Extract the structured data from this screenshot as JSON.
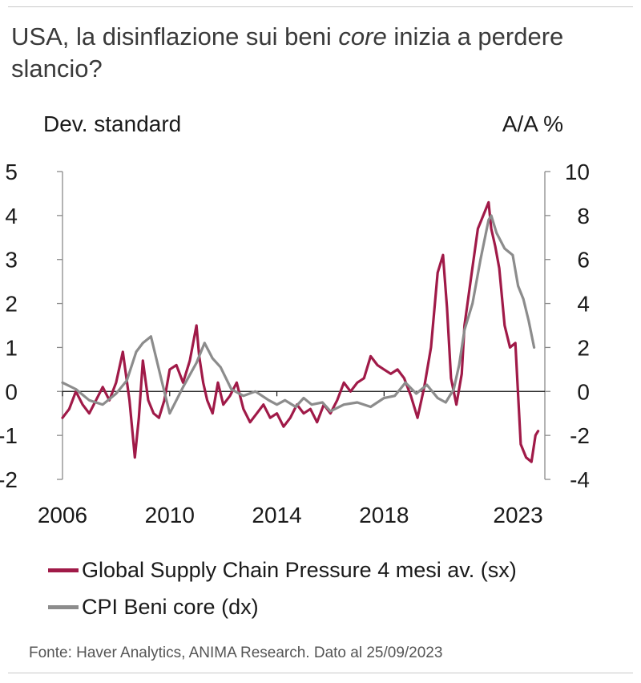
{
  "title": {
    "part1": "USA, la disinflazione sui beni ",
    "emph": "core",
    "part2": " inizia a perdere slancio?"
  },
  "colors": {
    "gscpi": "#a01a48",
    "cpi": "#8c8c8c",
    "axis": "#8a8a8a"
  },
  "chart_data": {
    "type": "line",
    "left_axis_label": "Dev. standard",
    "right_axis_label": "A/A %",
    "left_ylim": [
      -2,
      5
    ],
    "right_ylim": [
      -4,
      10
    ],
    "left_ticks": [
      "5",
      "4",
      "3",
      "2",
      "1",
      "0",
      "-1",
      "-2"
    ],
    "right_ticks": [
      "10",
      "8",
      "6",
      "4",
      "2",
      "0",
      "-2",
      "-4"
    ],
    "xlim": [
      2006,
      2024
    ],
    "x_ticks": [
      "2006",
      "2010",
      "2014",
      "2018",
      "2023"
    ],
    "series": [
      {
        "name": "Global Supply Chain Pressure 4 mesi av. (sx)",
        "axis": "left",
        "x": [
          2006.0,
          2006.25,
          2006.5,
          2006.75,
          2007.0,
          2007.25,
          2007.5,
          2007.75,
          2008.0,
          2008.25,
          2008.5,
          2008.7,
          2008.85,
          2009.0,
          2009.2,
          2009.4,
          2009.6,
          2009.8,
          2010.0,
          2010.25,
          2010.5,
          2010.75,
          2011.0,
          2011.1,
          2011.25,
          2011.4,
          2011.6,
          2011.8,
          2012.0,
          2012.25,
          2012.5,
          2012.75,
          2013.0,
          2013.25,
          2013.5,
          2013.75,
          2014.0,
          2014.25,
          2014.5,
          2014.75,
          2015.0,
          2015.25,
          2015.5,
          2015.75,
          2016.0,
          2016.25,
          2016.5,
          2016.75,
          2017.0,
          2017.25,
          2017.5,
          2017.75,
          2018.0,
          2018.25,
          2018.5,
          2018.75,
          2019.0,
          2019.25,
          2019.5,
          2019.75,
          2020.0,
          2020.2,
          2020.35,
          2020.5,
          2020.7,
          2020.9,
          2021.0,
          2021.25,
          2021.5,
          2021.7,
          2021.9,
          2022.0,
          2022.15,
          2022.3,
          2022.5,
          2022.7,
          2022.9,
          2023.1,
          2023.3,
          2023.5,
          2023.65,
          2023.75
        ],
        "values": [
          -0.6,
          -0.4,
          0.0,
          -0.3,
          -0.5,
          -0.2,
          0.1,
          -0.2,
          0.2,
          0.9,
          -0.2,
          -1.5,
          -0.6,
          0.7,
          -0.2,
          -0.5,
          -0.6,
          -0.2,
          0.5,
          0.6,
          0.2,
          0.7,
          1.5,
          0.8,
          0.2,
          -0.2,
          -0.5,
          0.2,
          -0.3,
          -0.1,
          0.2,
          -0.4,
          -0.7,
          -0.5,
          -0.3,
          -0.6,
          -0.5,
          -0.8,
          -0.6,
          -0.3,
          -0.5,
          -0.4,
          -0.7,
          -0.3,
          -0.5,
          -0.2,
          0.2,
          0.0,
          0.2,
          0.3,
          0.8,
          0.6,
          0.5,
          0.4,
          0.5,
          0.3,
          -0.1,
          -0.6,
          0.1,
          1.0,
          2.7,
          3.1,
          1.9,
          0.3,
          -0.3,
          0.4,
          1.5,
          2.6,
          3.7,
          4.0,
          4.3,
          3.7,
          3.3,
          2.8,
          1.5,
          1.0,
          1.1,
          -1.2,
          -1.5,
          -1.6,
          -1.0,
          -0.9
        ]
      },
      {
        "name": "CPI Beni core (dx)",
        "axis": "right",
        "x": [
          2006.0,
          2006.5,
          2007.0,
          2007.5,
          2008.0,
          2008.4,
          2008.75,
          2009.0,
          2009.3,
          2009.7,
          2010.0,
          2010.5,
          2011.0,
          2011.3,
          2011.6,
          2011.9,
          2012.3,
          2012.75,
          2013.2,
          2013.7,
          2014.0,
          2014.3,
          2014.7,
          2015.0,
          2015.3,
          2015.7,
          2016.0,
          2016.5,
          2017.0,
          2017.5,
          2018.0,
          2018.4,
          2018.8,
          2019.2,
          2019.6,
          2020.0,
          2020.3,
          2020.6,
          2020.8,
          2021.0,
          2021.3,
          2021.6,
          2021.9,
          2022.0,
          2022.2,
          2022.5,
          2022.8,
          2023.0,
          2023.2,
          2023.4,
          2023.6
        ],
        "values": [
          0.4,
          0.1,
          -0.4,
          -0.6,
          -0.1,
          0.5,
          1.8,
          2.2,
          2.5,
          0.5,
          -1.0,
          0.2,
          1.3,
          2.2,
          1.5,
          1.1,
          0.1,
          -0.2,
          0.0,
          -0.4,
          -0.6,
          -0.4,
          -0.7,
          -0.3,
          -0.6,
          -0.5,
          -0.9,
          -0.6,
          -0.5,
          -0.7,
          -0.3,
          -0.2,
          0.4,
          -0.1,
          0.3,
          -0.3,
          -0.5,
          0.1,
          1.2,
          2.8,
          4.0,
          6.0,
          7.8,
          8.0,
          7.2,
          6.5,
          6.2,
          4.8,
          4.2,
          3.2,
          2.0
        ]
      }
    ]
  },
  "legend": {
    "gscpi": "Global Supply Chain Pressure 4 mesi av. (sx)",
    "cpi": "CPI Beni core (dx)"
  },
  "source": "Fonte: Haver Analytics, ANIMA Research. Dato al 25/09/2023"
}
